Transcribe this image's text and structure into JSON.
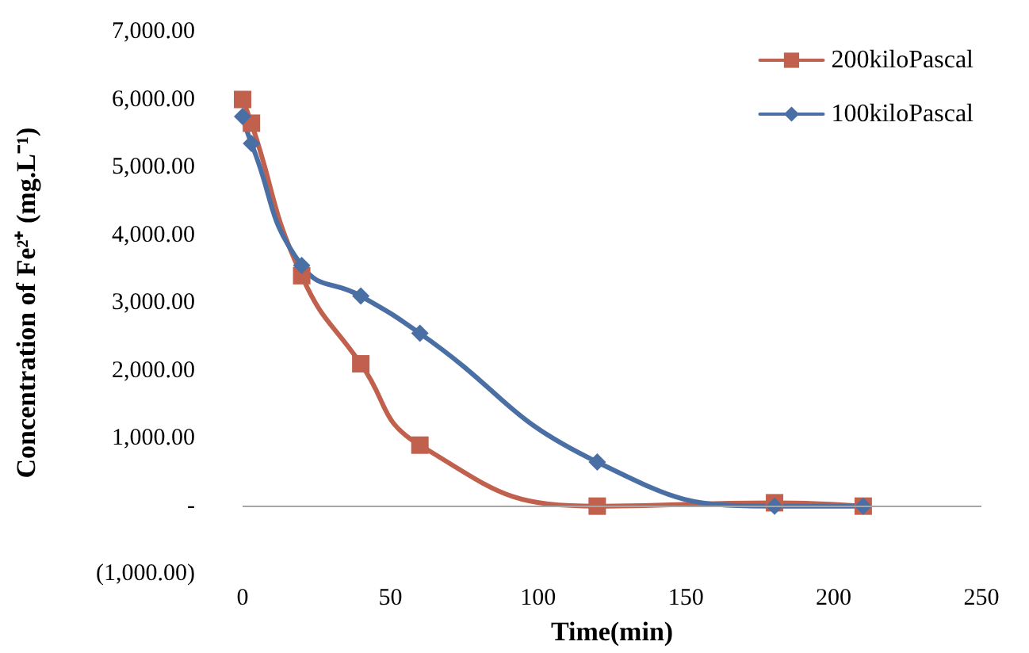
{
  "chart_data": {
    "type": "line",
    "xlabel": "Time(min)",
    "ylabel": "Concentration of Fe²⁺ (mg.L⁻¹)",
    "xlim": [
      0,
      250
    ],
    "xticks": [
      0,
      50,
      100,
      150,
      200,
      250
    ],
    "ylim": [
      -1000,
      7000
    ],
    "yticks": [
      {
        "value": -1000,
        "label": "(1,000.00)"
      },
      {
        "value": 0,
        "label": "-"
      },
      {
        "value": 1000,
        "label": "1,000.00"
      },
      {
        "value": 2000,
        "label": "2,000.00"
      },
      {
        "value": 3000,
        "label": "3,000.00"
      },
      {
        "value": 4000,
        "label": "4,000.00"
      },
      {
        "value": 5000,
        "label": "5,000.00"
      },
      {
        "value": 6000,
        "label": "6,000.00"
      },
      {
        "value": 7000,
        "label": "7,000.00"
      }
    ],
    "grid": false,
    "legend": "top right",
    "line_style": "solid",
    "ref_lines": [
      {
        "axis": "y",
        "value": 0,
        "color": "#a6a6a6"
      }
    ],
    "series": [
      {
        "name": "200kiloPascal",
        "color": "#c0604d",
        "marker": "square",
        "x": [
          0,
          3,
          20,
          40,
          60,
          120,
          180,
          210
        ],
        "values": [
          6000,
          5650,
          3400,
          2100,
          900,
          0,
          50,
          0
        ]
      },
      {
        "name": "100kiloPascal",
        "color": "#4a6fa5",
        "marker": "diamond",
        "x": [
          0,
          3,
          20,
          40,
          60,
          120,
          180,
          210
        ],
        "values": [
          5750,
          5350,
          3550,
          3100,
          2550,
          650,
          0,
          0
        ]
      }
    ]
  }
}
